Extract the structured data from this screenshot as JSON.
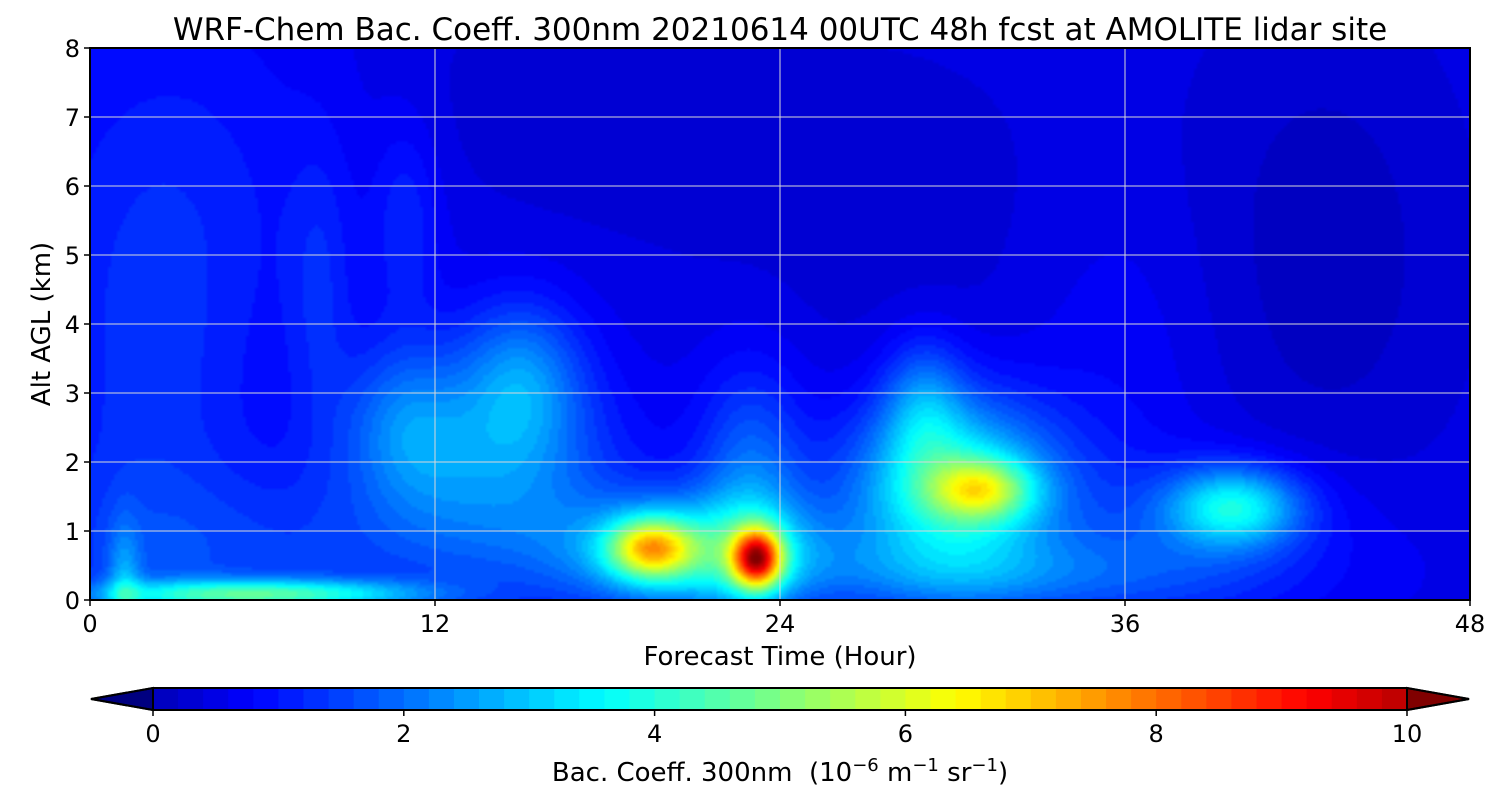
{
  "chart_data": {
    "type": "heatmap",
    "title": "WRF-Chem Bac. Coeff. 300nm  20210614 00UTC 48h fcst at AMOLITE lidar site",
    "xlabel": "Forecast Time (Hour)",
    "ylabel": "Alt AGL (km)",
    "xlim": [
      0,
      48
    ],
    "ylim": [
      0,
      8
    ],
    "xticks": [
      0,
      12,
      24,
      36,
      48
    ],
    "yticks": [
      0,
      1,
      2,
      3,
      4,
      5,
      6,
      7,
      8
    ],
    "grid": true,
    "colormap": "jet",
    "colorbar": {
      "label": "Bac. Coeff. 300nm",
      "units_prefix": "(10",
      "units_exp1": "−6",
      "units_mid1": " m",
      "units_exp2": "−1",
      "units_mid2": " sr",
      "units_exp3": "−1",
      "units_suffix": ")",
      "range": [
        0,
        10
      ],
      "ticks": [
        0,
        2,
        4,
        6,
        8,
        10
      ],
      "extend": "both",
      "placement": "bottom"
    },
    "background_value": 0.6,
    "features": [
      {
        "x": 1.2,
        "y": 0.05,
        "sx": 0.4,
        "sy": 0.7,
        "v": 1.4
      },
      {
        "x": 4,
        "y": 0.08,
        "sx": 3.0,
        "sy": 0.15,
        "v": 2.2
      },
      {
        "x": 8,
        "y": 0.08,
        "sx": 3.0,
        "sy": 0.15,
        "v": 2.0
      },
      {
        "x": 6,
        "y": 0.6,
        "sx": 6.0,
        "sy": 0.9,
        "v": 0.7
      },
      {
        "x": 2,
        "y": 2.5,
        "sx": 2.5,
        "sy": 2.5,
        "v": 0.6
      },
      {
        "x": 3.5,
        "y": 6.0,
        "sx": 4.0,
        "sy": 2.0,
        "v": 0.4
      },
      {
        "x": 8,
        "y": 4.5,
        "sx": 0.8,
        "sy": 1.5,
        "v": 0.5
      },
      {
        "x": 11,
        "y": 5.5,
        "sx": 0.8,
        "sy": 1.0,
        "v": 0.6
      },
      {
        "x": 11,
        "y": 2.6,
        "sx": 1.5,
        "sy": 0.8,
        "v": 1.2
      },
      {
        "x": 15,
        "y": 3.2,
        "sx": 1.5,
        "sy": 0.8,
        "v": 1.6
      },
      {
        "x": 14,
        "y": 1.8,
        "sx": 3.0,
        "sy": 1.0,
        "v": 1.5
      },
      {
        "x": 21,
        "y": 0.7,
        "sx": 3.0,
        "sy": 0.55,
        "v": 3.0
      },
      {
        "x": 23,
        "y": 1.6,
        "sx": 1.3,
        "sy": 1.2,
        "v": 1.5
      },
      {
        "x": 19.5,
        "y": 0.75,
        "sx": 1.0,
        "sy": 0.3,
        "v": 4.2
      },
      {
        "x": 23.2,
        "y": 0.6,
        "sx": 0.6,
        "sy": 0.3,
        "v": 6.5
      },
      {
        "x": 30,
        "y": 1.6,
        "sx": 2.5,
        "sy": 0.9,
        "v": 3.4
      },
      {
        "x": 29,
        "y": 2.8,
        "sx": 1.0,
        "sy": 0.7,
        "v": 1.4
      },
      {
        "x": 31,
        "y": 1.6,
        "sx": 1.2,
        "sy": 0.3,
        "v": 3.0
      },
      {
        "x": 31,
        "y": 0.35,
        "sx": 5.0,
        "sy": 0.4,
        "v": 1.0
      },
      {
        "x": 39.8,
        "y": 1.35,
        "sx": 1.6,
        "sy": 0.4,
        "v": 2.8
      },
      {
        "x": 38.5,
        "y": 0.8,
        "sx": 4.0,
        "sy": 0.8,
        "v": 0.8
      },
      {
        "x": 43,
        "y": 5.0,
        "sx": 4.0,
        "sy": 3.0,
        "v": -0.5
      },
      {
        "x": 28,
        "y": 5.5,
        "sx": 6.0,
        "sy": 2.5,
        "v": -0.3
      },
      {
        "x": 16,
        "y": 7.2,
        "sx": 5.0,
        "sy": 1.5,
        "v": -0.3
      },
      {
        "x": 36,
        "y": 3.5,
        "sx": 2.5,
        "sy": 2.0,
        "v": 0.3
      }
    ]
  }
}
